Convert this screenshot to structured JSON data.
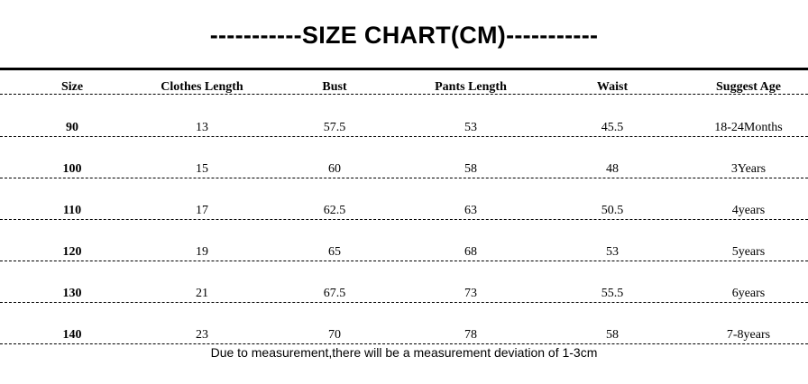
{
  "header": {
    "title": "-----------SIZE CHART(CM)-----------"
  },
  "table": {
    "columns": [
      "Size",
      "Clothes Length",
      "Bust",
      "Pants Length",
      "Waist",
      "Suggest Age"
    ],
    "rows": [
      [
        "90",
        "13",
        "57.5",
        "53",
        "45.5",
        "18-24Months"
      ],
      [
        "100",
        "15",
        "60",
        "58",
        "48",
        "3Years"
      ],
      [
        "110",
        "17",
        "62.5",
        "63",
        "50.5",
        "4years"
      ],
      [
        "120",
        "19",
        "65",
        "68",
        "53",
        "5years"
      ],
      [
        "130",
        "21",
        "67.5",
        "73",
        "55.5",
        "6years"
      ],
      [
        "140",
        "23",
        "70",
        "78",
        "58",
        "7-8years"
      ]
    ]
  },
  "footnote": "Due to measurement,there will be a measurement deviation of 1-3cm"
}
